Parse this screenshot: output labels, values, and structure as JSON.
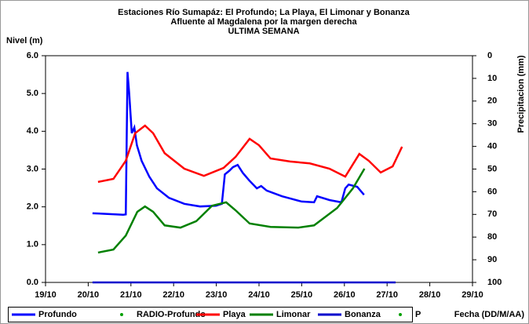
{
  "chart_data": {
    "type": "line",
    "title": [
      "Estaciones Río Sumapáz: El Profundo; La Playa, El Limonar y Bonanza",
      "Afluente al Magdalena por la margen derecha",
      "ULTIMA SEMANA"
    ],
    "y_label": "Nivel (m)",
    "y2_label": "Precipitacion (mm)",
    "x_label": "Fecha (DD/M/AA)",
    "xlim": [
      19,
      29
    ],
    "xticks": [
      {
        "value": 19,
        "label": "19/10"
      },
      {
        "value": 20,
        "label": "20/10"
      },
      {
        "value": 21,
        "label": "21/10"
      },
      {
        "value": 22,
        "label": "22/10"
      },
      {
        "value": 23,
        "label": "23/10"
      },
      {
        "value": 24,
        "label": "24/10"
      },
      {
        "value": 25,
        "label": "25/10"
      },
      {
        "value": 26,
        "label": "26/10"
      },
      {
        "value": 27,
        "label": "27/10"
      },
      {
        "value": 28,
        "label": "28/10"
      },
      {
        "value": 29,
        "label": "29/10"
      }
    ],
    "ylim": [
      0,
      6
    ],
    "yticks": [
      {
        "value": 0,
        "label": "0.0"
      },
      {
        "value": 1,
        "label": "1.0"
      },
      {
        "value": 2,
        "label": "2.0"
      },
      {
        "value": 3,
        "label": "3.0"
      },
      {
        "value": 4,
        "label": "4.0"
      },
      {
        "value": 5,
        "label": "5.0"
      },
      {
        "value": 6,
        "label": "6.0"
      }
    ],
    "y2lim": [
      100,
      0
    ],
    "y2ticks": [
      0,
      10,
      20,
      30,
      40,
      50,
      60,
      70,
      80,
      90,
      100
    ],
    "grid": false,
    "series": [
      {
        "name": "Profundo",
        "color": "#0000ff",
        "mode": "lines",
        "x": [
          20.1,
          20.5,
          20.82,
          20.88,
          20.92,
          20.96,
          21.02,
          21.08,
          21.14,
          21.25,
          21.43,
          21.61,
          21.89,
          22.25,
          22.62,
          22.99,
          23.13,
          23.2,
          23.3,
          23.39,
          23.5,
          23.62,
          23.77,
          23.95,
          24.05,
          24.18,
          24.54,
          25.0,
          25.29,
          25.36,
          25.65,
          25.93,
          26.02,
          26.1,
          26.3,
          26.46
        ],
        "values": [
          1.83,
          1.81,
          1.79,
          1.8,
          5.57,
          5.0,
          3.95,
          4.1,
          3.63,
          3.22,
          2.8,
          2.49,
          2.24,
          2.08,
          2.01,
          2.03,
          2.08,
          2.86,
          2.95,
          3.05,
          3.11,
          2.9,
          2.7,
          2.49,
          2.55,
          2.43,
          2.28,
          2.14,
          2.12,
          2.28,
          2.18,
          2.12,
          2.49,
          2.59,
          2.53,
          2.32
        ]
      },
      {
        "name": "RADIO-Profundo",
        "color": "#00a000",
        "mode": "markers",
        "x": [],
        "values": []
      },
      {
        "name": "Playa",
        "color": "#ff0000",
        "mode": "lines",
        "x": [
          20.23,
          20.59,
          20.88,
          21.1,
          21.33,
          21.52,
          21.79,
          22.25,
          22.71,
          23.17,
          23.45,
          23.78,
          24.0,
          24.27,
          24.73,
          25.19,
          25.65,
          26.02,
          26.35,
          26.57,
          26.85,
          27.13,
          27.35
        ],
        "values": [
          2.66,
          2.74,
          3.22,
          3.95,
          4.15,
          3.95,
          3.42,
          3.01,
          2.82,
          3.03,
          3.32,
          3.8,
          3.63,
          3.28,
          3.2,
          3.15,
          3.01,
          2.8,
          3.4,
          3.22,
          2.91,
          3.07,
          3.59
        ]
      },
      {
        "name": "Limonar",
        "color": "#008000",
        "mode": "lines",
        "x": [
          20.23,
          20.59,
          20.88,
          21.15,
          21.33,
          21.52,
          21.79,
          22.16,
          22.53,
          22.9,
          23.23,
          23.45,
          23.78,
          24.27,
          24.92,
          25.29,
          25.83,
          26.2,
          26.47
        ],
        "values": [
          0.79,
          0.87,
          1.24,
          1.87,
          2.01,
          1.87,
          1.51,
          1.45,
          1.62,
          2.03,
          2.12,
          1.91,
          1.56,
          1.47,
          1.45,
          1.51,
          1.97,
          2.49,
          3.01
        ]
      },
      {
        "name": "Bonanza",
        "color": "#0000cc",
        "mode": "lines",
        "x": [
          20.1,
          27.2
        ],
        "values": [
          0,
          0
        ]
      },
      {
        "name": "P",
        "color": "#00a000",
        "mode": "markers",
        "x": [],
        "values": []
      }
    ]
  }
}
